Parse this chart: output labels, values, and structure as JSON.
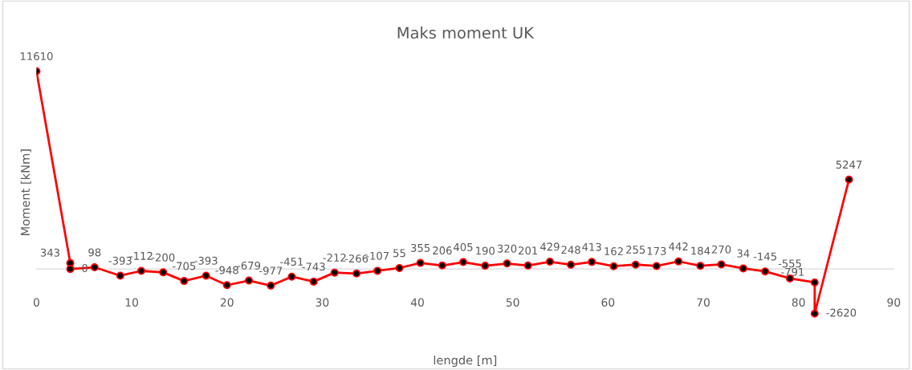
{
  "chart_data": {
    "type": "line",
    "title": "Maks moment UK",
    "xlabel": "lengde [m]",
    "ylabel": "Moment [kNm]",
    "xlim": [
      0,
      90
    ],
    "xticks": [
      0,
      10,
      20,
      30,
      40,
      50,
      60,
      70,
      80,
      90
    ],
    "x": [
      0,
      3.55,
      3.55,
      6.1,
      8.8,
      11.0,
      13.3,
      15.5,
      17.8,
      20.0,
      22.3,
      24.6,
      26.8,
      29.1,
      31.3,
      33.6,
      35.8,
      38.1,
      40.3,
      42.6,
      44.8,
      47.1,
      49.4,
      51.6,
      53.9,
      56.1,
      58.3,
      60.6,
      62.9,
      65.1,
      67.4,
      69.7,
      71.9,
      74.2,
      76.5,
      79.1,
      81.7,
      81.7,
      85.3
    ],
    "series": [
      {
        "color": "#ff0000",
        "values": [
          11610,
          343,
          0,
          98,
          -393,
          -112,
          -200,
          -705,
          -393,
          -948,
          -679,
          -977,
          -451,
          -743,
          -212,
          -266,
          -107,
          55,
          355,
          206,
          405,
          190,
          320,
          201,
          429,
          248,
          413,
          162,
          255,
          173,
          442,
          184,
          270,
          34,
          -145,
          -555,
          -791,
          -2620,
          5247
        ]
      }
    ],
    "marker": "circle",
    "line_style": "solid",
    "data_labels": true,
    "grid": false,
    "legend": false
  }
}
